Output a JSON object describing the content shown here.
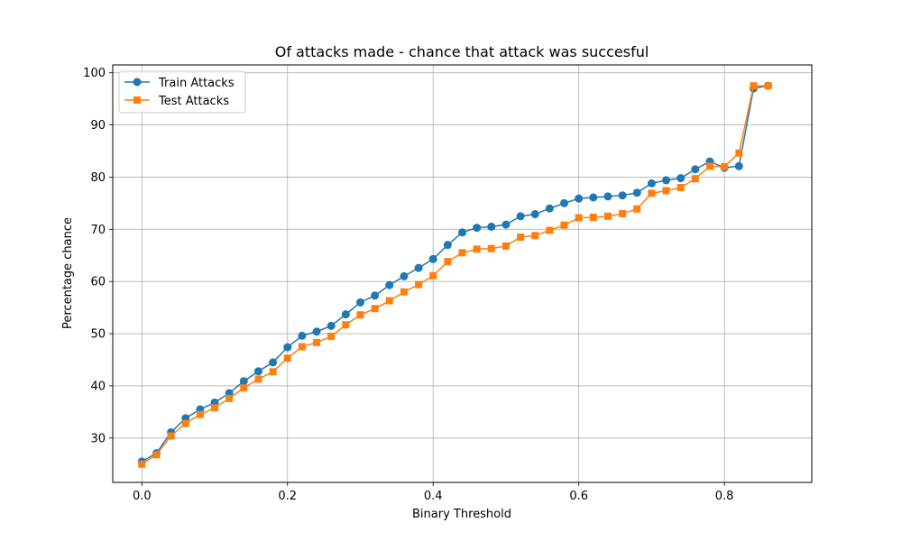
{
  "chart_data": {
    "type": "line",
    "title": "Of attacks made - chance that attack was succesful",
    "xlabel": "Binary Threshold",
    "ylabel": "Percentage chance",
    "xlim": [
      -0.04,
      0.92
    ],
    "ylim": [
      21.5,
      101.5
    ],
    "xticks": [
      0.0,
      0.2,
      0.4,
      0.6,
      0.8
    ],
    "xtick_labels": [
      "0.0",
      "0.2",
      "0.4",
      "0.6",
      "0.8"
    ],
    "yticks": [
      30,
      40,
      50,
      60,
      70,
      80,
      90,
      100
    ],
    "ytick_labels": [
      "30",
      "40",
      "50",
      "60",
      "70",
      "80",
      "90",
      "100"
    ],
    "grid": true,
    "legend_position": "top-left",
    "x": [
      0.0,
      0.02,
      0.04,
      0.06,
      0.08,
      0.1,
      0.12,
      0.14,
      0.16,
      0.18,
      0.2,
      0.22,
      0.24,
      0.26,
      0.28,
      0.3,
      0.32,
      0.34,
      0.36,
      0.38,
      0.4,
      0.42,
      0.44,
      0.46,
      0.48,
      0.5,
      0.52,
      0.54,
      0.56,
      0.58,
      0.6,
      0.62,
      0.64,
      0.66,
      0.68,
      0.7,
      0.72,
      0.74,
      0.76,
      0.78,
      0.8,
      0.82,
      0.84,
      0.86
    ],
    "series": [
      {
        "name": "Train Attacks",
        "color": "#1f77b4",
        "marker": "circle",
        "values": [
          25.5,
          27.1,
          31.1,
          33.8,
          35.5,
          36.8,
          38.6,
          40.9,
          42.8,
          44.5,
          47.4,
          49.6,
          50.4,
          51.5,
          53.7,
          56.0,
          57.3,
          59.3,
          61.0,
          62.6,
          64.3,
          67.0,
          69.4,
          70.3,
          70.5,
          70.9,
          72.5,
          72.9,
          74.0,
          75.0,
          75.9,
          76.1,
          76.3,
          76.5,
          77.0,
          78.8,
          79.4,
          79.8,
          81.5,
          83.0,
          81.8,
          82.1,
          97.0,
          97.5
        ]
      },
      {
        "name": "Test Attacks",
        "color": "#ff7f0e",
        "marker": "square",
        "values": [
          25.0,
          26.8,
          30.4,
          32.8,
          34.5,
          35.8,
          37.6,
          39.6,
          41.3,
          42.7,
          45.3,
          47.5,
          48.3,
          49.5,
          51.7,
          53.6,
          54.8,
          56.3,
          58.0,
          59.4,
          61.1,
          63.8,
          65.5,
          66.2,
          66.3,
          66.8,
          68.5,
          68.8,
          69.8,
          70.8,
          72.2,
          72.3,
          72.5,
          73.0,
          73.9,
          76.9,
          77.4,
          78.0,
          79.7,
          82.1,
          82.0,
          84.6,
          97.5,
          97.5
        ]
      }
    ]
  }
}
